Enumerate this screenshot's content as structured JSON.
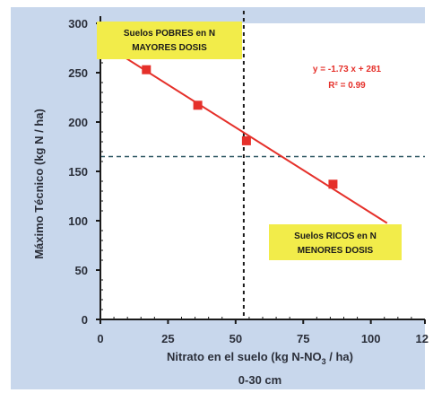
{
  "chart_data": {
    "type": "scatter",
    "x": [
      17,
      36,
      54,
      86
    ],
    "y": [
      253,
      217,
      181,
      137
    ],
    "xlim": [
      0,
      120
    ],
    "ylim": [
      0,
      300
    ],
    "xticks": [
      "0",
      "25",
      "50",
      "75",
      "100",
      "12"
    ],
    "yticks": [
      "0",
      "50",
      "100",
      "150",
      "200",
      "250",
      "300"
    ],
    "xlabel_line1": "Nitrato en el suelo (kg N-NO",
    "xlabel_sub": "3",
    "xlabel_line1_end": " / ha)",
    "xlabel_line2": "0-30 cm",
    "ylabel": "Máximo Técnico (kg N / ha)",
    "trendline": {
      "slope": -1.73,
      "intercept": 281,
      "x_from": 0,
      "x_to": 106
    },
    "ref_lines": {
      "vertical_x": 53,
      "horizontal_y": 165
    },
    "annotations": {
      "top_box_line1": "Suelos POBRES en N",
      "top_box_line2": "MAYORES DOSIS",
      "bottom_box_line1": "Suelos RICOS en N",
      "bottom_box_line2": "MENORES DOSIS",
      "equation": "y = -1.73 x + 281",
      "r_squared": "R² = 0.99"
    },
    "colors": {
      "background": "#c8d7ec",
      "plot_area": "#ffffff",
      "marker": "#e5302a",
      "line": "#e5302a",
      "box_fill": "#f2ec4a",
      "text": "#2b2f3a"
    },
    "grid": false
  }
}
